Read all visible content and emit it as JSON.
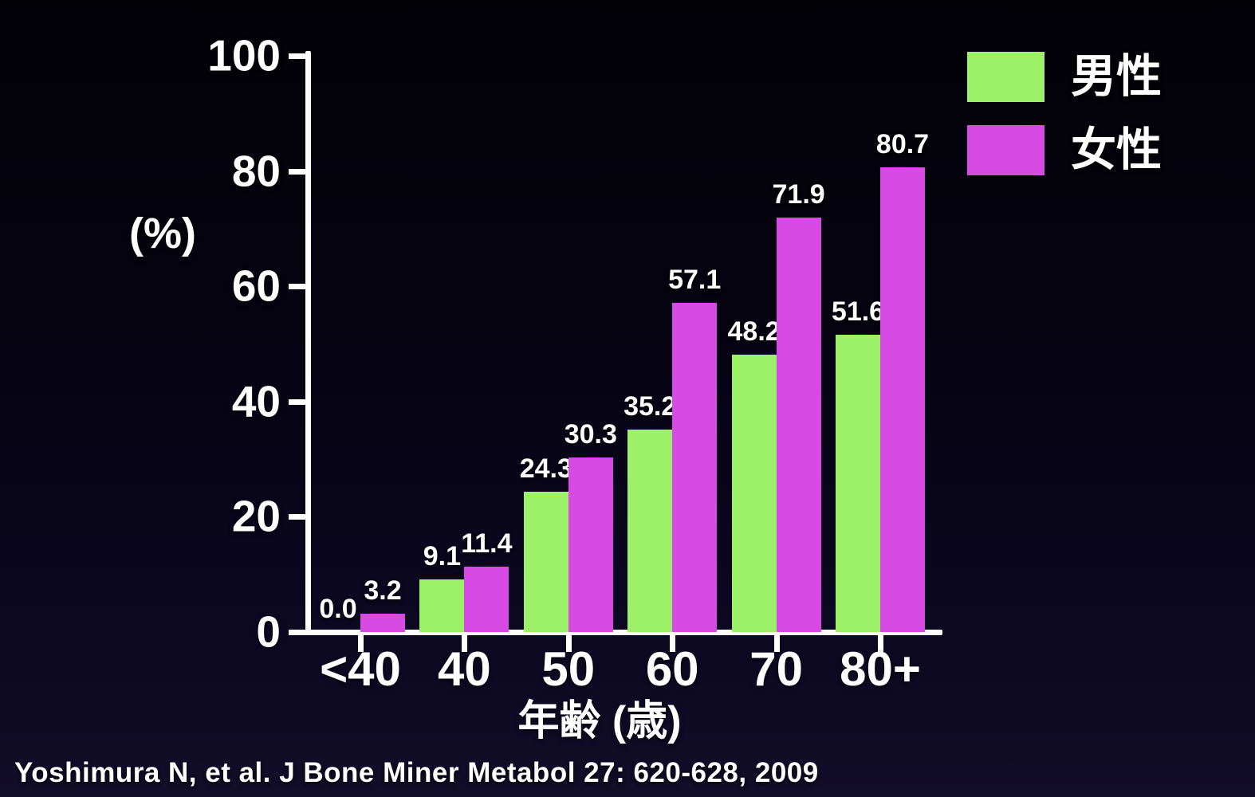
{
  "chart_data": {
    "type": "bar",
    "title": "",
    "categories": [
      "<40",
      "40",
      "50",
      "60",
      "70",
      "80+"
    ],
    "series": [
      {
        "name": "男性",
        "color": "#9cf168",
        "values": [
          0.0,
          9.1,
          24.3,
          35.2,
          48.2,
          51.6
        ]
      },
      {
        "name": "女性",
        "color": "#d84ae4",
        "values": [
          3.2,
          11.4,
          30.3,
          57.1,
          71.9,
          80.7
        ]
      }
    ],
    "xlabel": "年齢 (歳)",
    "ylabel": "(%)",
    "ylim": [
      0,
      100
    ],
    "yticks": [
      0,
      20,
      40,
      60,
      80,
      100
    ],
    "grid": false,
    "legend_position": "top-right",
    "value_labels_shown": true,
    "value_label_decimals": 1
  },
  "colors": {
    "background_top": "#030207",
    "background_bottom": "#120d28",
    "axis": "#ffffff",
    "text": "#ffffff",
    "male_bar": "#9cf168",
    "female_bar": "#d84ae4"
  },
  "citation": "Yoshimura N, et al. J Bone Miner Metabol 27: 620-628, 2009"
}
